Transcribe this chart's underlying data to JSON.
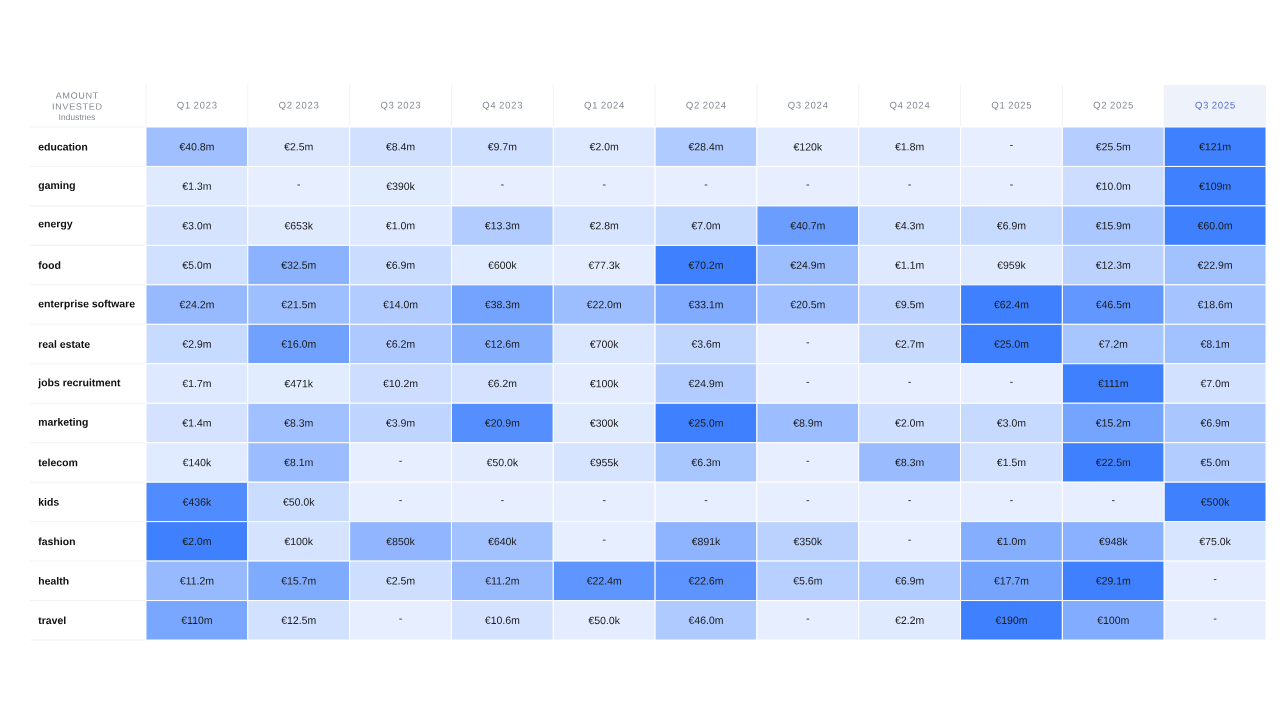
{
  "chart_data": {
    "type": "heatmap",
    "title": "AMOUNT INVESTED",
    "ylabel": "Industries",
    "color": "#3f80ff",
    "categories": [
      "Q1 2023",
      "Q2 2023",
      "Q3 2023",
      "Q4 2023",
      "Q1 2024",
      "Q2 2024",
      "Q3 2024",
      "Q4 2024",
      "Q1 2025",
      "Q2 2025",
      "Q3 2025"
    ],
    "y_categories": [
      "education",
      "gaming",
      "energy",
      "food",
      "enterprise software",
      "real estate",
      "jobs recruitment",
      "marketing",
      "telecom",
      "kids",
      "fashion",
      "health",
      "travel"
    ],
    "cells": [
      [
        40800000,
        2500000,
        8400000,
        9700000,
        2000000,
        28400000,
        120000,
        1800000,
        null,
        25500000,
        121000000
      ],
      [
        1300000,
        null,
        390000,
        null,
        null,
        null,
        null,
        null,
        null,
        10000000,
        109000000
      ],
      [
        3000000,
        653000,
        1000000,
        13300000,
        2800000,
        7000000,
        40700000,
        4300000,
        6900000,
        15900000,
        60000000
      ],
      [
        5000000,
        32500000,
        6900000,
        600000,
        77300,
        70200000,
        24900000,
        1100000,
        959000,
        12300000,
        22900000
      ],
      [
        24200000,
        21500000,
        14000000,
        38300000,
        22000000,
        33100000,
        20500000,
        9500000,
        62400000,
        46500000,
        18600000
      ],
      [
        2900000,
        16000000,
        6200000,
        12600000,
        700000,
        3600000,
        null,
        2700000,
        25000000,
        7200000,
        8100000
      ],
      [
        1700000,
        471000,
        10200000,
        6200000,
        100000,
        24900000,
        null,
        null,
        null,
        111000000,
        7000000
      ],
      [
        1400000,
        8300000,
        3900000,
        20900000,
        300000,
        25000000,
        8900000,
        2000000,
        3000000,
        15200000,
        6900000
      ],
      [
        140000,
        8100000,
        null,
        50000,
        955000,
        6300000,
        null,
        8300000,
        1500000,
        22500000,
        5000000
      ],
      [
        436000,
        50000,
        null,
        null,
        null,
        null,
        null,
        null,
        null,
        null,
        500000
      ],
      [
        2000000,
        100000,
        850000,
        640000,
        null,
        891000,
        350000,
        null,
        1000000,
        948000,
        75000
      ],
      [
        11200000,
        15700000,
        2500000,
        11200000,
        22400000,
        22600000,
        5600000,
        6900000,
        17700000,
        29100000,
        null
      ],
      [
        110000000,
        12500000,
        null,
        10600000,
        50000,
        46000000,
        null,
        2200000,
        190000000,
        100000000,
        null
      ]
    ],
    "cell_labels": [
      [
        "€40.8m",
        "€2.5m",
        "€8.4m",
        "€9.7m",
        "€2.0m",
        "€28.4m",
        "€120k",
        "€1.8m",
        "-",
        "€25.5m",
        "€121m"
      ],
      [
        "€1.3m",
        "-",
        "€390k",
        "-",
        "-",
        "-",
        "-",
        "-",
        "-",
        "€10.0m",
        "€109m"
      ],
      [
        "€3.0m",
        "€653k",
        "€1.0m",
        "€13.3m",
        "€2.8m",
        "€7.0m",
        "€40.7m",
        "€4.3m",
        "€6.9m",
        "€15.9m",
        "€60.0m"
      ],
      [
        "€5.0m",
        "€32.5m",
        "€6.9m",
        "€600k",
        "€77.3k",
        "€70.2m",
        "€24.9m",
        "€1.1m",
        "€959k",
        "€12.3m",
        "€22.9m"
      ],
      [
        "€24.2m",
        "€21.5m",
        "€14.0m",
        "€38.3m",
        "€22.0m",
        "€33.1m",
        "€20.5m",
        "€9.5m",
        "€62.4m",
        "€46.5m",
        "€18.6m"
      ],
      [
        "€2.9m",
        "€16.0m",
        "€6.2m",
        "€12.6m",
        "€700k",
        "€3.6m",
        "-",
        "€2.7m",
        "€25.0m",
        "€7.2m",
        "€8.1m"
      ],
      [
        "€1.7m",
        "€471k",
        "€10.2m",
        "€6.2m",
        "€100k",
        "€24.9m",
        "-",
        "-",
        "-",
        "€111m",
        "€7.0m"
      ],
      [
        "€1.4m",
        "€8.3m",
        "€3.9m",
        "€20.9m",
        "€300k",
        "€25.0m",
        "€8.9m",
        "€2.0m",
        "€3.0m",
        "€15.2m",
        "€6.9m"
      ],
      [
        "€140k",
        "€8.1m",
        "-",
        "€50.0k",
        "€955k",
        "€6.3m",
        "-",
        "€8.3m",
        "€1.5m",
        "€22.5m",
        "€5.0m"
      ],
      [
        "€436k",
        "€50.0k",
        "-",
        "-",
        "-",
        "-",
        "-",
        "-",
        "-",
        "-",
        "€500k"
      ],
      [
        "€2.0m",
        "€100k",
        "€850k",
        "€640k",
        "-",
        "€891k",
        "€350k",
        "-",
        "€1.0m",
        "€948k",
        "€75.0k"
      ],
      [
        "€11.2m",
        "€15.7m",
        "€2.5m",
        "€11.2m",
        "€22.4m",
        "€22.6m",
        "€5.6m",
        "€6.9m",
        "€17.7m",
        "€29.1m",
        "-"
      ],
      [
        "€110m",
        "€12.5m",
        "-",
        "€10.6m",
        "€50.0k",
        "€46.0m",
        "-",
        "€2.2m",
        "€190m",
        "€100m",
        "-"
      ]
    ]
  }
}
